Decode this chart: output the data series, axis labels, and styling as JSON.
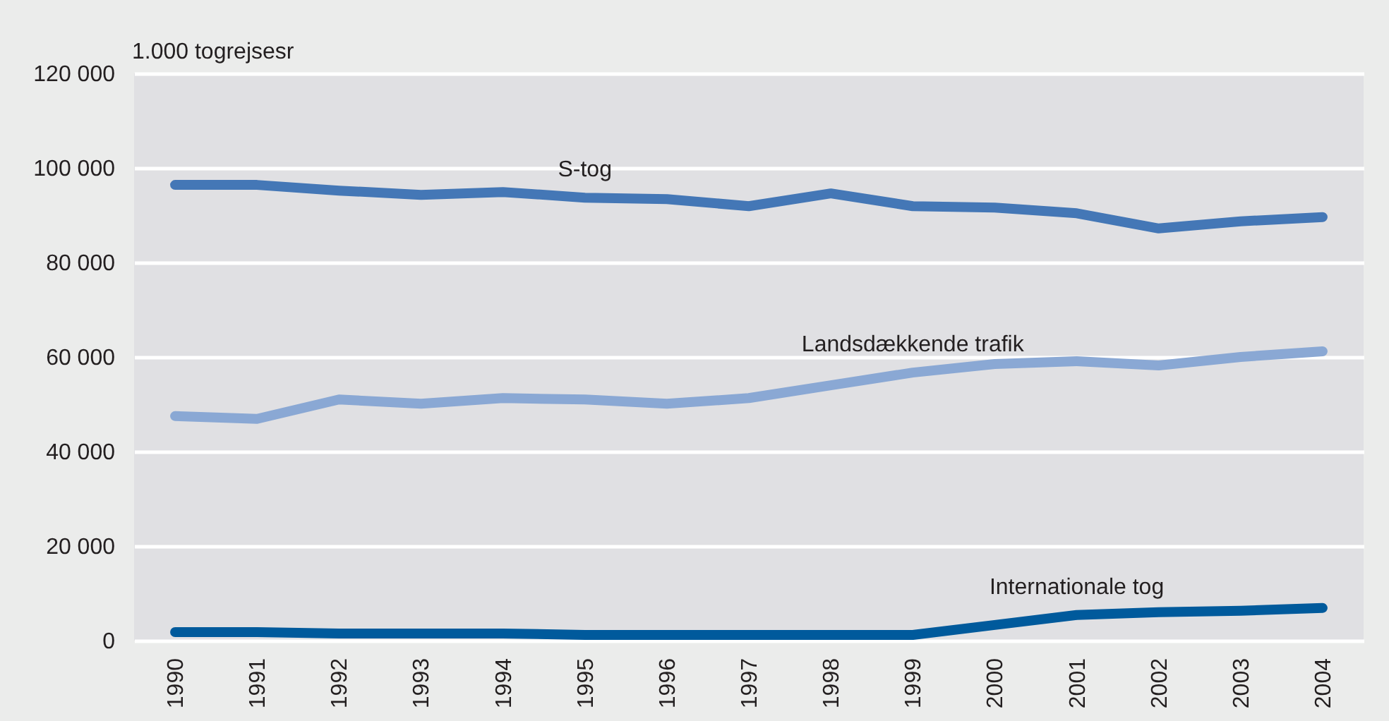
{
  "chart_data": {
    "type": "line",
    "ylabel": "1.000 togrejsesr",
    "categories": [
      "1990",
      "1991",
      "1992",
      "1993",
      "1994",
      "1995",
      "1996",
      "1997",
      "1998",
      "1999",
      "2000",
      "2001",
      "2002",
      "2003",
      "2004"
    ],
    "series": [
      {
        "name": "S-tog",
        "color": "#4477b6",
        "values": [
          96400,
          96400,
          95200,
          94300,
          94900,
          93700,
          93400,
          91900,
          94600,
          91900,
          91600,
          90400,
          87200,
          88700,
          89600
        ]
      },
      {
        "name": "Landsdækkende trafik",
        "color": "#8aa8d4",
        "values": [
          47500,
          46900,
          51000,
          50100,
          51300,
          51000,
          50100,
          51300,
          54000,
          56700,
          58500,
          59100,
          58200,
          60000,
          61200
        ]
      },
      {
        "name": "Internationale tog",
        "color": "#005a9c",
        "values": [
          1800,
          1800,
          1500,
          1500,
          1500,
          1200,
          1200,
          1200,
          1200,
          1200,
          3300,
          5400,
          6000,
          6300,
          6900
        ]
      }
    ],
    "ylim": [
      0,
      120000
    ],
    "yticks": [
      {
        "value": 0,
        "label": "0"
      },
      {
        "value": 20000,
        "label": "20 000"
      },
      {
        "value": 40000,
        "label": "40 000"
      },
      {
        "value": 60000,
        "label": "60 000"
      },
      {
        "value": 80000,
        "label": "80 000"
      },
      {
        "value": 100000,
        "label": "100 000"
      },
      {
        "value": 120000,
        "label": "120 000"
      }
    ],
    "grid": "y",
    "legend": false,
    "marker": "none",
    "line_style": "solid"
  }
}
